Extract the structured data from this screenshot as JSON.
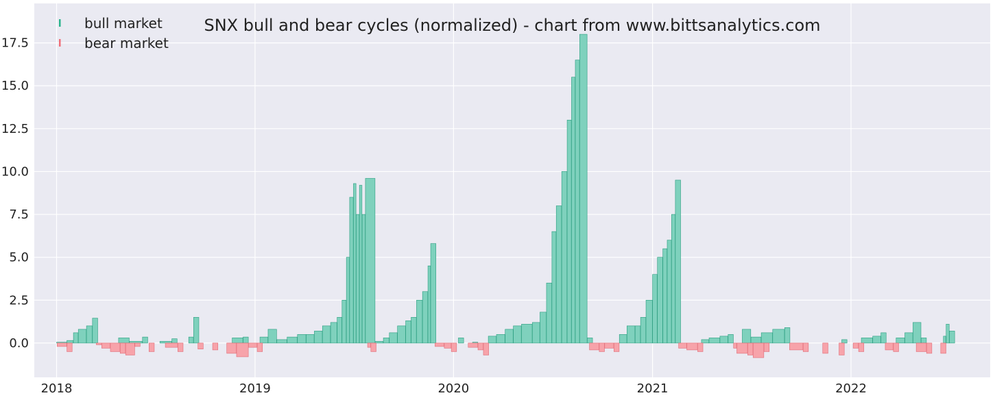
{
  "chart_data": {
    "type": "bar",
    "title": "SNX bull and bear cycles (normalized)  - chart from www.bittsanalytics.com",
    "xlabel": "",
    "ylabel": "",
    "x_range": [
      "2017-11-21",
      "2022-09-14"
    ],
    "ylim": [
      -2.0,
      19.8
    ],
    "grid": true,
    "background": "#eaeaf2",
    "x_ticks": [
      {
        "date": "2018-01-01",
        "label": "2018"
      },
      {
        "date": "2019-01-01",
        "label": "2019"
      },
      {
        "date": "2020-01-01",
        "label": "2020"
      },
      {
        "date": "2021-01-01",
        "label": "2021"
      },
      {
        "date": "2022-01-01",
        "label": "2022"
      }
    ],
    "y_ticks": [
      "0.0",
      "2.5",
      "5.0",
      "7.5",
      "10.0",
      "12.5",
      "15.0",
      "17.5"
    ],
    "legend": {
      "placement": "top-left",
      "entries": [
        {
          "label": "bull market",
          "color": "#2ab48c"
        },
        {
          "label": "bear market",
          "color": "#f06e78"
        }
      ]
    },
    "colors": {
      "bull_fill": "#7fd1bd",
      "bull_edge": "#2a9d7f",
      "bear_fill": "#f7a3aa",
      "bear_edge": "#e06a75"
    },
    "series": [
      {
        "name": "bull market",
        "points": [
          [
            "2018-01-01",
            0.05
          ],
          [
            "2018-01-20",
            0.15
          ],
          [
            "2018-02-01",
            0.6
          ],
          [
            "2018-02-10",
            0.8
          ],
          [
            "2018-02-25",
            1.0
          ],
          [
            "2018-03-08",
            1.45
          ],
          [
            "2018-04-25",
            0.3
          ],
          [
            "2018-05-15",
            0.1
          ],
          [
            "2018-06-08",
            0.35
          ],
          [
            "2018-07-10",
            0.1
          ],
          [
            "2018-08-01",
            0.25
          ],
          [
            "2018-09-01",
            0.35
          ],
          [
            "2018-09-10",
            1.5
          ],
          [
            "2018-11-20",
            0.3
          ],
          [
            "2018-12-10",
            0.35
          ],
          [
            "2019-01-10",
            0.35
          ],
          [
            "2019-01-25",
            0.8
          ],
          [
            "2019-02-10",
            0.2
          ],
          [
            "2019-03-01",
            0.35
          ],
          [
            "2019-03-20",
            0.5
          ],
          [
            "2019-04-05",
            0.5
          ],
          [
            "2019-04-20",
            0.7
          ],
          [
            "2019-05-05",
            1.0
          ],
          [
            "2019-05-20",
            1.2
          ],
          [
            "2019-06-01",
            1.5
          ],
          [
            "2019-06-10",
            2.5
          ],
          [
            "2019-06-18",
            5.0
          ],
          [
            "2019-06-24",
            8.5
          ],
          [
            "2019-07-01",
            9.3
          ],
          [
            "2019-07-06",
            7.5
          ],
          [
            "2019-07-12",
            9.2
          ],
          [
            "2019-07-17",
            7.5
          ],
          [
            "2019-07-23",
            9.6
          ],
          [
            "2019-08-10",
            0.1
          ],
          [
            "2019-08-25",
            0.3
          ],
          [
            "2019-09-05",
            0.6
          ],
          [
            "2019-09-20",
            1.0
          ],
          [
            "2019-10-05",
            1.3
          ],
          [
            "2019-10-15",
            1.5
          ],
          [
            "2019-10-25",
            2.5
          ],
          [
            "2019-11-05",
            3.0
          ],
          [
            "2019-11-15",
            4.5
          ],
          [
            "2019-11-20",
            5.8
          ],
          [
            "2020-01-10",
            0.3
          ],
          [
            "2020-02-05",
            0.05
          ],
          [
            "2020-03-05",
            0.4
          ],
          [
            "2020-03-20",
            0.5
          ],
          [
            "2020-04-05",
            0.8
          ],
          [
            "2020-04-20",
            1.0
          ],
          [
            "2020-05-05",
            1.1
          ],
          [
            "2020-05-25",
            1.2
          ],
          [
            "2020-06-08",
            1.8
          ],
          [
            "2020-06-20",
            3.5
          ],
          [
            "2020-06-30",
            6.5
          ],
          [
            "2020-07-08",
            8.0
          ],
          [
            "2020-07-18",
            10.0
          ],
          [
            "2020-07-28",
            13.0
          ],
          [
            "2020-08-05",
            15.5
          ],
          [
            "2020-08-12",
            16.5
          ],
          [
            "2020-08-20",
            18.0
          ],
          [
            "2020-09-03",
            0.3
          ],
          [
            "2020-11-01",
            0.5
          ],
          [
            "2020-11-15",
            1.0
          ],
          [
            "2020-11-30",
            1.0
          ],
          [
            "2020-12-10",
            1.5
          ],
          [
            "2020-12-20",
            2.5
          ],
          [
            "2021-01-01",
            4.0
          ],
          [
            "2021-01-10",
            5.0
          ],
          [
            "2021-01-20",
            5.5
          ],
          [
            "2021-01-28",
            6.0
          ],
          [
            "2021-02-05",
            7.5
          ],
          [
            "2021-02-12",
            9.5
          ],
          [
            "2021-04-01",
            0.2
          ],
          [
            "2021-04-15",
            0.3
          ],
          [
            "2021-05-05",
            0.4
          ],
          [
            "2021-05-20",
            0.5
          ],
          [
            "2021-06-15",
            0.8
          ],
          [
            "2021-07-01",
            0.35
          ],
          [
            "2021-07-20",
            0.6
          ],
          [
            "2021-08-10",
            0.8
          ],
          [
            "2021-09-01",
            0.9
          ],
          [
            "2021-12-15",
            0.2
          ],
          [
            "2022-01-20",
            0.3
          ],
          [
            "2022-02-10",
            0.4
          ],
          [
            "2022-02-25",
            0.6
          ],
          [
            "2022-03-25",
            0.3
          ],
          [
            "2022-04-10",
            0.6
          ],
          [
            "2022-04-25",
            1.2
          ],
          [
            "2022-05-10",
            0.3
          ],
          [
            "2022-06-20",
            0.4
          ],
          [
            "2022-06-25",
            1.1
          ],
          [
            "2022-07-01",
            0.7
          ]
        ]
      },
      {
        "name": "bear market",
        "points": [
          [
            "2018-01-02",
            -0.2
          ],
          [
            "2018-01-20",
            -0.5
          ],
          [
            "2018-03-15",
            -0.1
          ],
          [
            "2018-03-25",
            -0.3
          ],
          [
            "2018-04-10",
            -0.5
          ],
          [
            "2018-04-28",
            -0.6
          ],
          [
            "2018-05-08",
            -0.7
          ],
          [
            "2018-05-25",
            -0.2
          ],
          [
            "2018-06-20",
            -0.5
          ],
          [
            "2018-07-20",
            -0.25
          ],
          [
            "2018-08-12",
            -0.5
          ],
          [
            "2018-09-18",
            -0.35
          ],
          [
            "2018-10-15",
            -0.4
          ],
          [
            "2018-11-10",
            -0.6
          ],
          [
            "2018-11-28",
            -0.8
          ],
          [
            "2018-12-20",
            -0.25
          ],
          [
            "2019-01-05",
            -0.5
          ],
          [
            "2019-07-27",
            -0.25
          ],
          [
            "2019-08-02",
            -0.5
          ],
          [
            "2019-11-28",
            -0.2
          ],
          [
            "2019-12-15",
            -0.3
          ],
          [
            "2019-12-28",
            -0.5
          ],
          [
            "2020-01-28",
            -0.25
          ],
          [
            "2020-02-15",
            -0.4
          ],
          [
            "2020-02-25",
            -0.7
          ],
          [
            "2020-09-07",
            -0.4
          ],
          [
            "2020-09-25",
            -0.5
          ],
          [
            "2020-10-05",
            -0.3
          ],
          [
            "2020-10-22",
            -0.5
          ],
          [
            "2021-02-18",
            -0.3
          ],
          [
            "2021-03-05",
            -0.4
          ],
          [
            "2021-03-25",
            -0.5
          ],
          [
            "2021-05-30",
            -0.3
          ],
          [
            "2021-06-05",
            -0.6
          ],
          [
            "2021-06-25",
            -0.7
          ],
          [
            "2021-07-05",
            -0.85
          ],
          [
            "2021-07-25",
            -0.5
          ],
          [
            "2021-09-10",
            -0.4
          ],
          [
            "2021-10-05",
            -0.5
          ],
          [
            "2021-11-10",
            -0.6
          ],
          [
            "2021-12-10",
            -0.7
          ],
          [
            "2022-01-05",
            -0.3
          ],
          [
            "2022-01-15",
            -0.5
          ],
          [
            "2022-03-05",
            -0.4
          ],
          [
            "2022-03-20",
            -0.5
          ],
          [
            "2022-05-01",
            -0.5
          ],
          [
            "2022-05-20",
            -0.6
          ],
          [
            "2022-06-15",
            -0.6
          ]
        ]
      }
    ]
  }
}
